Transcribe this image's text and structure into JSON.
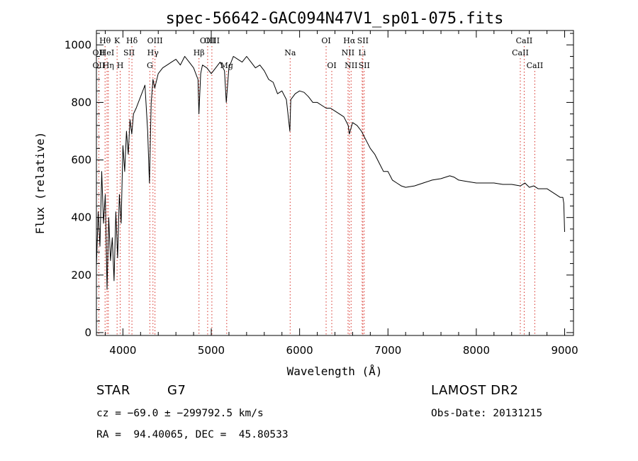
{
  "chart_data": {
    "type": "line",
    "title": "spec-56642-GAC094N47V1_sp01-075.fits",
    "xlabel": "Wavelength (Å)",
    "ylabel": "Flux (relative)",
    "xlim": [
      3700,
      9100
    ],
    "ylim": [
      -10,
      1050
    ],
    "x_ticks": [
      4000,
      5000,
      6000,
      7000,
      8000,
      9000
    ],
    "y_ticks": [
      0,
      200,
      400,
      600,
      800,
      1000
    ],
    "grid": false,
    "series": [
      {
        "x": [
          3700,
          3720,
          3740,
          3760,
          3780,
          3800,
          3820,
          3840,
          3860,
          3880,
          3900,
          3920,
          3940,
          3960,
          3980,
          4000,
          4020,
          4040,
          4060,
          4080,
          4100,
          4120,
          4150,
          4200,
          4250,
          4280,
          4300,
          4320,
          4340,
          4360,
          4400,
          4450,
          4500,
          4550,
          4600,
          4650,
          4700,
          4750,
          4800,
          4850,
          4860,
          4880,
          4900,
          4950,
          5000,
          5050,
          5100,
          5150,
          5170,
          5200,
          5250,
          5300,
          5350,
          5400,
          5450,
          5500,
          5550,
          5600,
          5650,
          5700,
          5750,
          5800,
          5850,
          5890,
          5900,
          5950,
          6000,
          6050,
          6100,
          6150,
          6200,
          6250,
          6300,
          6350,
          6400,
          6450,
          6500,
          6550,
          6563,
          6600,
          6650,
          6700,
          6750,
          6800,
          6850,
          6900,
          6950,
          7000,
          7050,
          7100,
          7150,
          7200,
          7300,
          7400,
          7500,
          7600,
          7700,
          7750,
          7800,
          7900,
          8000,
          8100,
          8200,
          8300,
          8400,
          8500,
          8550,
          8600,
          8650,
          8700,
          8800,
          8900,
          8950,
          8980,
          8990,
          9000
        ],
        "y": [
          230,
          420,
          300,
          560,
          380,
          480,
          150,
          400,
          250,
          330,
          180,
          420,
          260,
          480,
          380,
          650,
          560,
          700,
          620,
          740,
          690,
          760,
          780,
          820,
          860,
          700,
          520,
          800,
          880,
          850,
          900,
          920,
          930,
          940,
          950,
          930,
          960,
          940,
          920,
          880,
          760,
          900,
          930,
          920,
          900,
          920,
          940,
          910,
          800,
          920,
          960,
          950,
          940,
          960,
          940,
          920,
          930,
          910,
          880,
          870,
          830,
          840,
          810,
          700,
          810,
          830,
          840,
          835,
          820,
          800,
          800,
          790,
          780,
          780,
          770,
          760,
          750,
          720,
          690,
          730,
          720,
          700,
          670,
          640,
          620,
          590,
          560,
          560,
          530,
          520,
          510,
          505,
          510,
          520,
          530,
          535,
          545,
          540,
          530,
          525,
          520,
          520,
          520,
          515,
          515,
          510,
          520,
          505,
          510,
          500,
          500,
          480,
          470,
          470,
          450,
          350
        ]
      }
    ],
    "spectral_lines": [
      {
        "label": "Hθ",
        "x": 3798,
        "row": 1
      },
      {
        "label": "K",
        "x": 3934,
        "row": 1
      },
      {
        "label": "Hδ",
        "x": 4102,
        "row": 1
      },
      {
        "label": "OII",
        "x": 3727,
        "row": 2
      },
      {
        "label": "HeI",
        "x": 3820,
        "row": 2
      },
      {
        "label": "SII",
        "x": 4070,
        "row": 2
      },
      {
        "label": "OII",
        "x": 3727,
        "row": 3
      },
      {
        "label": "Hη",
        "x": 3835,
        "row": 3
      },
      {
        "label": "H",
        "x": 3969,
        "row": 3
      },
      {
        "label": "OIII",
        "x": 4363,
        "row": 1
      },
      {
        "label": "Hγ",
        "x": 4340,
        "row": 2
      },
      {
        "label": "G",
        "x": 4305,
        "row": 3
      },
      {
        "label": "OIII",
        "x": 4959,
        "row": 1
      },
      {
        "label": "OIII",
        "x": 5007,
        "row": 1
      },
      {
        "label": "Hβ",
        "x": 4861,
        "row": 2
      },
      {
        "label": "Mg",
        "x": 5175,
        "row": 3
      },
      {
        "label": "Na",
        "x": 5893,
        "row": 2
      },
      {
        "label": "OI",
        "x": 6300,
        "row": 1
      },
      {
        "label": "OI",
        "x": 6364,
        "row": 3
      },
      {
        "label": "Hα",
        "x": 6563,
        "row": 1
      },
      {
        "label": "SII",
        "x": 6716,
        "row": 1
      },
      {
        "label": "NII",
        "x": 6548,
        "row": 2
      },
      {
        "label": "Li",
        "x": 6708,
        "row": 2
      },
      {
        "label": "NII",
        "x": 6583,
        "row": 3
      },
      {
        "label": "SII",
        "x": 6731,
        "row": 3
      },
      {
        "label": "CaII",
        "x": 8542,
        "row": 1
      },
      {
        "label": "CaII",
        "x": 8498,
        "row": 2
      },
      {
        "label": "CaII",
        "x": 8662,
        "row": 3
      }
    ]
  },
  "info": {
    "object_class": "STAR",
    "subclass": "G7",
    "redshift_text": "cz = −69.0 ± −299792.5 km/s",
    "coords_text": "RA =  94.40065, DEC =  45.80533",
    "survey": "LAMOST DR2",
    "obs_date": "Obs-Date: 20131215"
  },
  "colors": {
    "spectrum": "#000000",
    "line_markers": "#d73027",
    "axes": "#000000"
  }
}
